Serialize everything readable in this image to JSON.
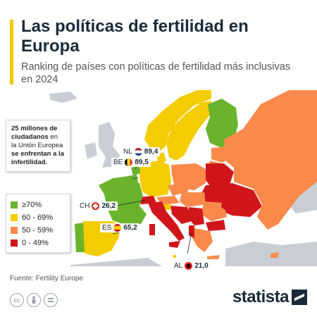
{
  "header": {
    "title": "Las políticas de fertilidad en Europa",
    "subtitle": "Ranking de países con políticas de fertilidad más inclusivas en 2024",
    "accent_color": "#f5c800"
  },
  "callout": {
    "line1_bold": "25 millones de ciudadanos",
    "line2": " en la Unión Europea ",
    "line3_bold": "se enfrentan a la infertilidad."
  },
  "legend": {
    "items": [
      {
        "label": "≥70%",
        "color": "#6ab42d"
      },
      {
        "label": "60 - 69%",
        "color": "#f5cc00"
      },
      {
        "label": "50 - 59%",
        "color": "#f98a4b"
      },
      {
        "label": "0 - 49%",
        "color": "#d0161b"
      }
    ]
  },
  "map": {
    "no_data_color": "#c8ced3",
    "water_color": "#ffffff",
    "labels": {
      "nl": {
        "code": "NL",
        "value": "89,4",
        "flag": "netherlands-flag"
      },
      "be": {
        "code": "BE",
        "value": "89,5",
        "flag": "belgium-flag"
      },
      "ch": {
        "code": "CH",
        "value": "26,2",
        "flag": "switzerland-flag"
      },
      "es": {
        "code": "ES",
        "value": "65,2",
        "flag": "spain-flag"
      },
      "al": {
        "code": "AL",
        "value": "21,0",
        "flag": "albania-flag"
      }
    }
  },
  "footer": {
    "source": "Fuente: Fertility Europe",
    "license_icons": [
      "cc-icon",
      "person-icon",
      "equal-icon"
    ],
    "brand": "statista"
  }
}
